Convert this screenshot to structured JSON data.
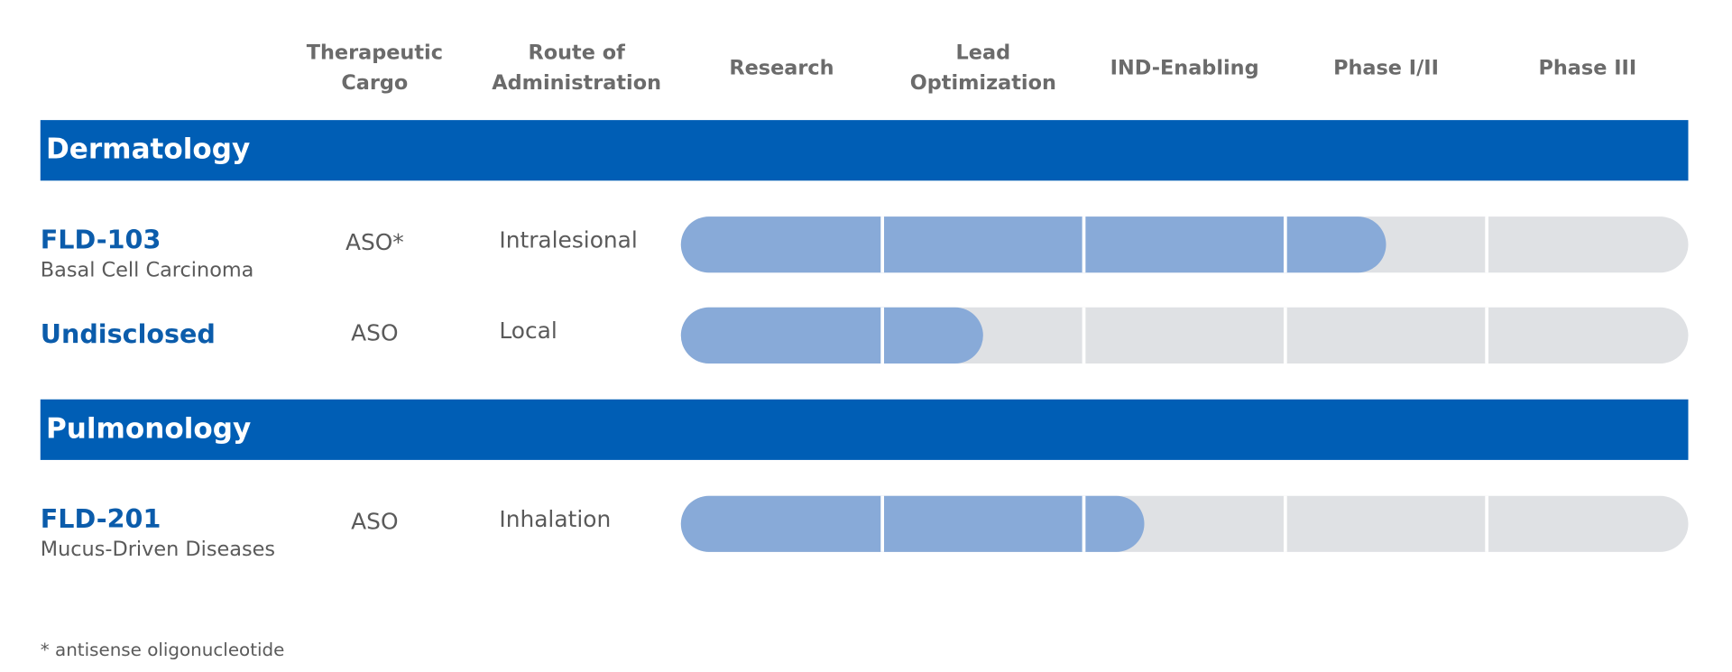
{
  "columns": [
    [
      "Therapeutic",
      "Cargo"
    ],
    [
      "Route of",
      "Administration"
    ]
  ],
  "stages": [
    [
      "Research"
    ],
    [
      "Lead",
      "Optimization"
    ],
    [
      "IND-Enabling"
    ],
    [
      "Phase I/II"
    ],
    [
      "Phase III"
    ]
  ],
  "groups": [
    {
      "name": "Dermatology",
      "programs": [
        {
          "name": "FLD-103",
          "indication": "Basal Cell Carcinoma",
          "cargo": "ASO*",
          "route": "Intralesional",
          "progress": 3.5
        },
        {
          "name": "Undisclosed",
          "cargo": "ASO",
          "route": "Local",
          "progress": 1.5
        }
      ]
    },
    {
      "name": "Pulmonology",
      "programs": [
        {
          "name": "FLD-201",
          "indication": "Mucus-Driven Diseases",
          "cargo": "ASO",
          "route": "Inhalation",
          "progress": 2.3
        }
      ]
    }
  ],
  "footnote": "* antisense oligonucleotide"
}
